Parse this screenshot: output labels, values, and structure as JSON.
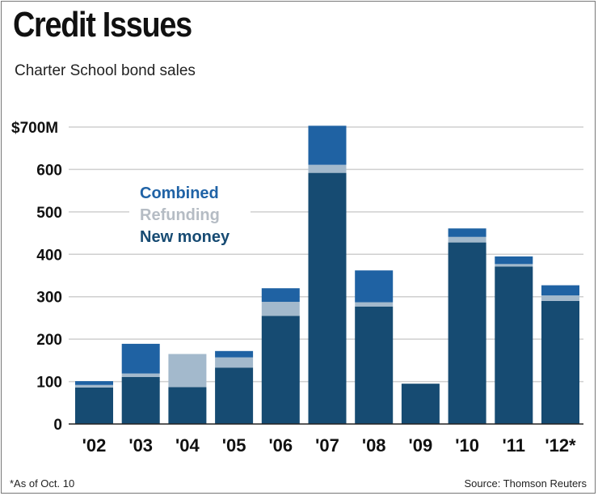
{
  "chart_data": {
    "type": "bar",
    "stacked": true,
    "title": "Credit Issues",
    "subtitle": "Charter School bond sales",
    "categories": [
      "'02",
      "'03",
      "'04",
      "'05",
      "'06",
      "'07",
      "'08",
      "'09",
      "'10",
      "'11",
      "'12*"
    ],
    "series": [
      {
        "name": "New money",
        "color": "#164b72",
        "values": [
          86,
          111,
          87,
          133,
          255,
          592,
          277,
          95,
          428,
          371,
          290
        ]
      },
      {
        "name": "Refunding",
        "color": "#a3b9cc",
        "values": [
          6,
          8,
          78,
          24,
          33,
          19,
          10,
          0,
          13,
          6,
          13
        ]
      },
      {
        "name": "Combined",
        "color": "#1f62a3",
        "values": [
          9,
          70,
          0,
          15,
          32,
          92,
          75,
          0,
          20,
          18,
          24
        ]
      }
    ],
    "legend_order": [
      "Combined",
      "Refunding",
      "New money"
    ],
    "legend_text_colors": {
      "Combined": "#2063a6",
      "Refunding": "#b5bcc4",
      "New money": "#174b73"
    },
    "yticks": [
      "0",
      "100",
      "200",
      "300",
      "400",
      "500",
      "600",
      "$700M"
    ],
    "ylim": [
      0,
      700
    ],
    "grid": true,
    "legend_placement": "top-left",
    "footnote": "*As of Oct. 10",
    "source": "Source: Thomson Reuters"
  }
}
